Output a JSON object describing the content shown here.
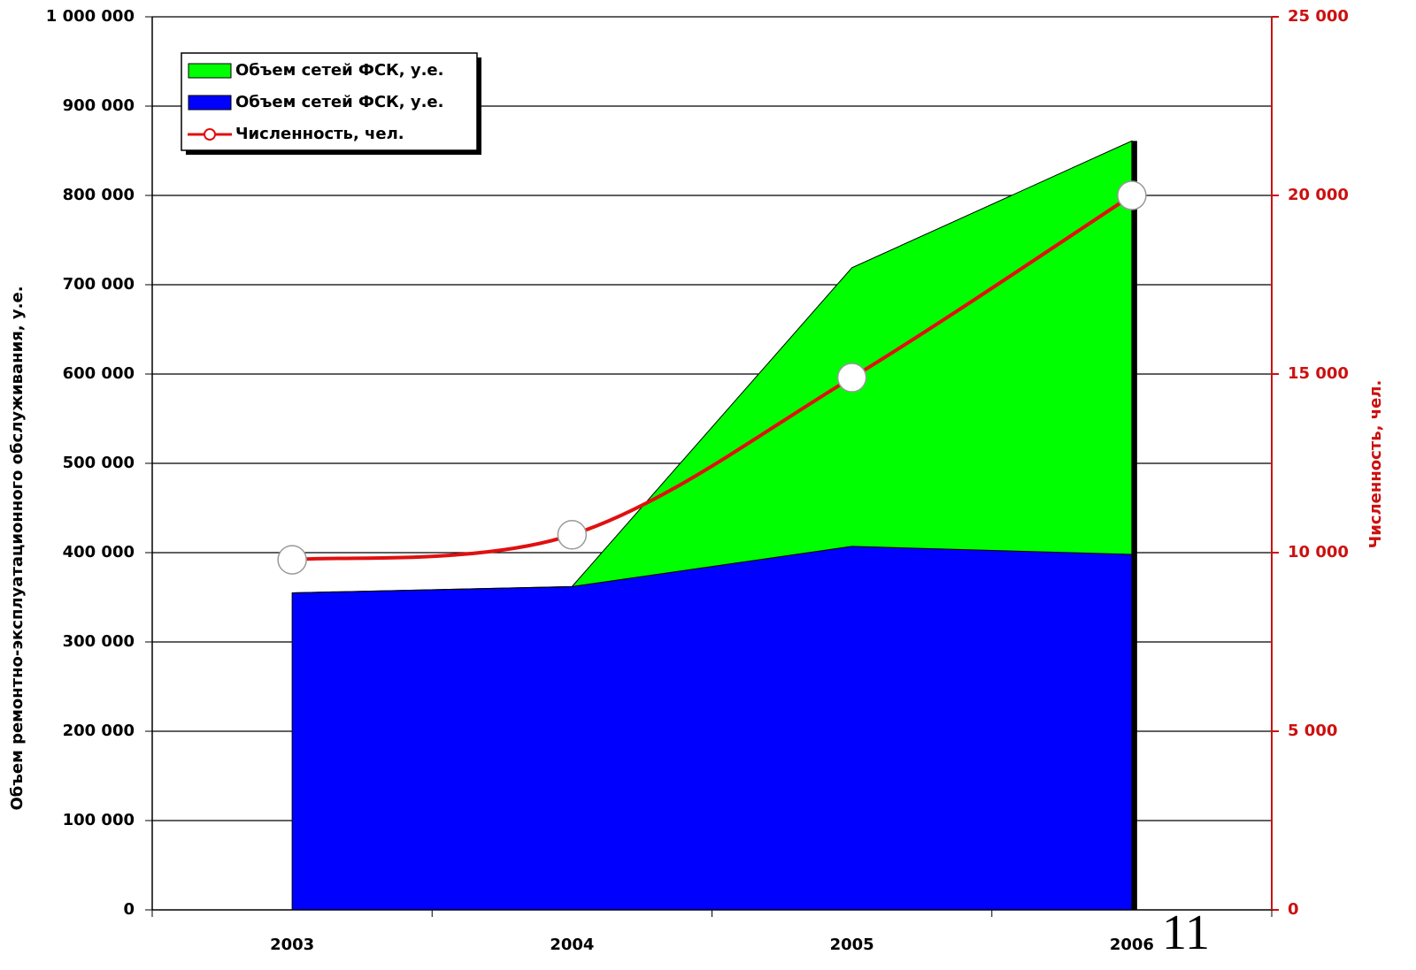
{
  "chart_data": {
    "type": "stacked_area_line",
    "categories": [
      "2003",
      "2004",
      "2005",
      "2006"
    ],
    "series": [
      {
        "name": "Объем сетей ФСК, у.е.",
        "color": "#0000ff",
        "values": [
          355000,
          362000,
          407000,
          398000
        ]
      },
      {
        "name": "Объем сетей ФСК, у.е.",
        "color": "#00ff00",
        "values": [
          0,
          0,
          312000,
          463000
        ]
      },
      {
        "name": "Численность, чел.",
        "color": "#e01010",
        "axis": "y2",
        "values": [
          9800,
          10500,
          14900,
          20000
        ]
      }
    ],
    "y_label": "Объем ремонтно-эксплуатационного обслуживания, у.е.",
    "y2_label": "Численность, чел.",
    "ylim": [
      0,
      1000000
    ],
    "yticks": [
      0,
      {
        "value": 100000,
        "label": "100 000"
      },
      {
        "value": 200000,
        "label": "200 000"
      },
      {
        "value": 300000,
        "label": "300 000"
      },
      {
        "value": 400000,
        "label": "400 000"
      },
      {
        "value": 500000,
        "label": "500 000"
      },
      {
        "value": 600000,
        "label": "600 000"
      },
      {
        "value": 700000,
        "label": "700 000"
      },
      {
        "value": 800000,
        "label": "800 000"
      },
      {
        "value": 900000,
        "label": "900 000"
      },
      {
        "value": 1000000,
        "label": "1 000 000"
      }
    ],
    "y2lim": [
      0,
      25000
    ],
    "y2ticks": [
      0,
      {
        "value": 5000,
        "label": "5 000"
      },
      {
        "value": 10000,
        "label": "10 000"
      },
      {
        "value": 15000,
        "label": "15 000"
      },
      {
        "value": 20000,
        "label": "20 000"
      },
      {
        "value": 25000,
        "label": "25 000"
      }
    ],
    "grid": true,
    "legend": "upper left"
  },
  "page_number": "11"
}
